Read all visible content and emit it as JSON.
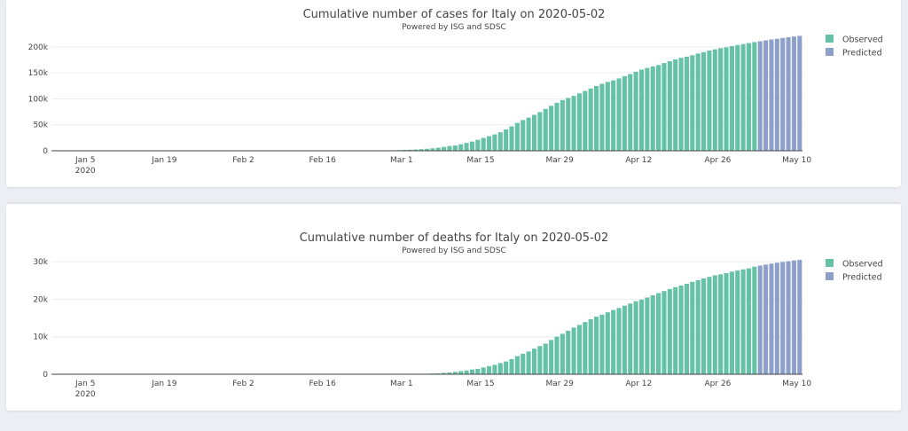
{
  "colors": {
    "observed": "#66c2a5",
    "predicted": "#8da0cb",
    "background": "#ebeef3"
  },
  "chart_data": [
    {
      "type": "bar",
      "title": "Cumulative number of cases for Italy on 2020-05-02",
      "subtitle": "Powered by ISG and SDSC",
      "xlabel": "",
      "ylabel": "",
      "x_ticks": [
        "Jan 5",
        "Jan 19",
        "Feb 2",
        "Feb 16",
        "Mar 1",
        "Mar 15",
        "Mar 29",
        "Apr 12",
        "Apr 26",
        "May 10"
      ],
      "x_tick_dates": [
        "2020-01-05",
        "2020-01-19",
        "2020-02-02",
        "2020-02-16",
        "2020-03-01",
        "2020-03-15",
        "2020-03-29",
        "2020-04-12",
        "2020-04-26",
        "2020-05-10"
      ],
      "x_year_label": "2020",
      "xlim": [
        "2019-12-30",
        "2020-05-11"
      ],
      "y_ticks": [
        0,
        50000,
        100000,
        150000,
        200000
      ],
      "y_tick_labels": [
        "0",
        "50k",
        "100k",
        "150k",
        "200k"
      ],
      "ylim": [
        0,
        234000
      ],
      "grid": true,
      "legend_position": "right",
      "series": [
        {
          "name": "Observed",
          "start_date": "2020-02-21",
          "values": [
            20,
            79,
            150,
            227,
            320,
            445,
            650,
            888,
            1128,
            1694,
            2036,
            2502,
            3089,
            3858,
            4636,
            5883,
            7375,
            9172,
            10149,
            12462,
            15113,
            17660,
            21157,
            24747,
            27980,
            31506,
            35713,
            41035,
            47021,
            53578,
            59138,
            63927,
            69176,
            74386,
            80589,
            86498,
            92472,
            97689,
            101739,
            105792,
            110574,
            115242,
            119827,
            124632,
            128948,
            132547,
            135586,
            139422,
            143626,
            147577,
            152271,
            156363,
            159516,
            162488,
            165155,
            168941,
            172434,
            175925,
            178972,
            181228,
            183957,
            187327,
            189973,
            192994,
            195351,
            197675,
            199414,
            201505,
            203591,
            205463,
            207428,
            209328
          ]
        },
        {
          "name": "Predicted",
          "start_date": "2020-05-03",
          "values": [
            211000,
            212600,
            214200,
            215700,
            217200,
            218600,
            220000,
            221300
          ]
        }
      ]
    },
    {
      "type": "bar",
      "title": "Cumulative number of deaths for Italy on 2020-05-02",
      "subtitle": "Powered by ISG and SDSC",
      "xlabel": "",
      "ylabel": "",
      "x_ticks": [
        "Jan 5",
        "Jan 19",
        "Feb 2",
        "Feb 16",
        "Mar 1",
        "Mar 15",
        "Mar 29",
        "Apr 12",
        "Apr 26",
        "May 10"
      ],
      "x_tick_dates": [
        "2020-01-05",
        "2020-01-19",
        "2020-02-02",
        "2020-02-16",
        "2020-03-01",
        "2020-03-15",
        "2020-03-29",
        "2020-04-12",
        "2020-04-26",
        "2020-05-10"
      ],
      "x_year_label": "2020",
      "xlim": [
        "2019-12-30",
        "2020-05-11"
      ],
      "y_ticks": [
        0,
        10000,
        20000,
        30000
      ],
      "y_tick_labels": [
        "0",
        "10k",
        "20k",
        "30k"
      ],
      "ylim": [
        0,
        32400
      ],
      "grid": true,
      "legend_position": "right",
      "series": [
        {
          "name": "Observed",
          "start_date": "2020-02-21",
          "values": [
            1,
            2,
            3,
            7,
            10,
            12,
            17,
            21,
            29,
            34,
            52,
            79,
            107,
            148,
            197,
            233,
            366,
            463,
            631,
            827,
            1016,
            1266,
            1441,
            1809,
            2158,
            2503,
            2978,
            3405,
            4032,
            4825,
            5476,
            6077,
            6820,
            7503,
            8165,
            9134,
            10023,
            10779,
            11591,
            12428,
            13155,
            13915,
            14681,
            15362,
            15887,
            16523,
            17127,
            17669,
            18279,
            18849,
            19468,
            19899,
            20465,
            21067,
            21645,
            22170,
            22745,
            23227,
            23660,
            24114,
            24648,
            25085,
            25549,
            25969,
            26384,
            26644,
            26977,
            27359,
            27682,
            27967,
            28236,
            28710
          ]
        },
        {
          "name": "Predicted",
          "start_date": "2020-05-03",
          "values": [
            29000,
            29250,
            29500,
            29750,
            29950,
            30150,
            30350,
            30500
          ]
        }
      ]
    }
  ]
}
